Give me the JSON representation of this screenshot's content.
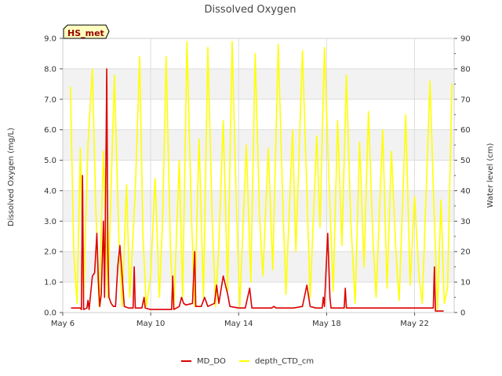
{
  "chart_data": {
    "type": "line",
    "title": "Dissolved Oxygen",
    "site_label": "HS_met",
    "xlabel": "",
    "ylabel_left": "Dissolved Oxygen (mg/L)",
    "ylabel_right": "Water level (cm)",
    "x_range_days": [
      6,
      23.8
    ],
    "ylim_left": [
      0,
      9
    ],
    "ylim_right": [
      0,
      90
    ],
    "yticks_left": [
      "0.0",
      "1.0",
      "2.0",
      "3.0",
      "4.0",
      "5.0",
      "6.0",
      "7.0",
      "8.0",
      "9.0"
    ],
    "yticks_right": [
      "0",
      "10",
      "20",
      "30",
      "40",
      "50",
      "60",
      "70",
      "80",
      "90"
    ],
    "x_ticks": [
      {
        "day": 6,
        "label": "May 6"
      },
      {
        "day": 10,
        "label": "May 10"
      },
      {
        "day": 14,
        "label": "May 14"
      },
      {
        "day": 18,
        "label": "May 18"
      },
      {
        "day": 22,
        "label": "May 22"
      }
    ],
    "grid": true,
    "legend_position": "bottom-center",
    "series": [
      {
        "name": "MD_DO",
        "axis": "left",
        "color": "#dd0000",
        "points": [
          [
            6.4,
            0.15
          ],
          [
            6.7,
            0.15
          ],
          [
            6.8,
            0.15
          ],
          [
            6.85,
            0.1
          ],
          [
            6.9,
            4.5
          ],
          [
            6.95,
            0.1
          ],
          [
            7.1,
            0.15
          ],
          [
            7.15,
            0.4
          ],
          [
            7.2,
            0.1
          ],
          [
            7.35,
            1.2
          ],
          [
            7.45,
            1.3
          ],
          [
            7.55,
            2.6
          ],
          [
            7.62,
            1.0
          ],
          [
            7.68,
            0.2
          ],
          [
            7.75,
            0.6
          ],
          [
            7.85,
            3.0
          ],
          [
            7.9,
            0.5
          ],
          [
            7.95,
            4.0
          ],
          [
            8.0,
            8.0
          ],
          [
            8.05,
            2.0
          ],
          [
            8.1,
            0.5
          ],
          [
            8.2,
            0.3
          ],
          [
            8.3,
            0.2
          ],
          [
            8.4,
            0.2
          ],
          [
            8.5,
            1.5
          ],
          [
            8.6,
            2.2
          ],
          [
            8.7,
            1.2
          ],
          [
            8.8,
            0.2
          ],
          [
            9.0,
            0.15
          ],
          [
            9.2,
            0.15
          ],
          [
            9.25,
            1.5
          ],
          [
            9.3,
            0.15
          ],
          [
            9.6,
            0.15
          ],
          [
            9.7,
            0.5
          ],
          [
            9.75,
            0.15
          ],
          [
            10.0,
            0.1
          ],
          [
            10.5,
            0.1
          ],
          [
            10.95,
            0.1
          ],
          [
            11.0,
            1.2
          ],
          [
            11.05,
            0.1
          ],
          [
            11.3,
            0.2
          ],
          [
            11.4,
            0.5
          ],
          [
            11.5,
            0.3
          ],
          [
            11.6,
            0.25
          ],
          [
            11.9,
            0.3
          ],
          [
            12.0,
            2.0
          ],
          [
            12.05,
            0.2
          ],
          [
            12.3,
            0.2
          ],
          [
            12.45,
            0.5
          ],
          [
            12.6,
            0.2
          ],
          [
            12.9,
            0.3
          ],
          [
            13.0,
            0.9
          ],
          [
            13.1,
            0.3
          ],
          [
            13.3,
            1.2
          ],
          [
            13.4,
            0.9
          ],
          [
            13.5,
            0.6
          ],
          [
            13.6,
            0.2
          ],
          [
            14.0,
            0.15
          ],
          [
            14.3,
            0.15
          ],
          [
            14.5,
            0.8
          ],
          [
            14.6,
            0.15
          ],
          [
            15.0,
            0.15
          ],
          [
            15.5,
            0.15
          ],
          [
            15.6,
            0.2
          ],
          [
            15.7,
            0.15
          ],
          [
            16.0,
            0.15
          ],
          [
            16.5,
            0.15
          ],
          [
            16.9,
            0.2
          ],
          [
            17.1,
            0.9
          ],
          [
            17.25,
            0.2
          ],
          [
            17.5,
            0.15
          ],
          [
            17.8,
            0.15
          ],
          [
            17.85,
            0.5
          ],
          [
            17.9,
            0.2
          ],
          [
            18.05,
            2.6
          ],
          [
            18.15,
            0.5
          ],
          [
            18.2,
            0.15
          ],
          [
            18.5,
            0.15
          ],
          [
            18.8,
            0.15
          ],
          [
            18.85,
            0.8
          ],
          [
            18.9,
            0.15
          ],
          [
            19.5,
            0.15
          ],
          [
            20.0,
            0.15
          ],
          [
            20.5,
            0.15
          ],
          [
            21.0,
            0.15
          ],
          [
            21.5,
            0.15
          ],
          [
            22.0,
            0.15
          ],
          [
            22.5,
            0.15
          ],
          [
            22.85,
            0.15
          ],
          [
            22.9,
            1.5
          ],
          [
            22.95,
            0.05
          ],
          [
            23.3,
            0.05
          ]
        ]
      },
      {
        "name": "depth_CTD_cm",
        "axis": "right",
        "color": "#ffff00",
        "points": [
          [
            6.35,
            74
          ],
          [
            6.5,
            20
          ],
          [
            6.65,
            3
          ],
          [
            6.8,
            54
          ],
          [
            6.95,
            5
          ],
          [
            7.15,
            55
          ],
          [
            7.35,
            80
          ],
          [
            7.5,
            35
          ],
          [
            7.65,
            2
          ],
          [
            7.85,
            53
          ],
          [
            8.05,
            5
          ],
          [
            8.35,
            78
          ],
          [
            8.55,
            25
          ],
          [
            8.7,
            2
          ],
          [
            8.9,
            42
          ],
          [
            9.05,
            5
          ],
          [
            9.3,
            40
          ],
          [
            9.5,
            84
          ],
          [
            9.65,
            25
          ],
          [
            9.8,
            2
          ],
          [
            10.0,
            12
          ],
          [
            10.2,
            44
          ],
          [
            10.4,
            5
          ],
          [
            10.55,
            33
          ],
          [
            10.7,
            84
          ],
          [
            10.9,
            20
          ],
          [
            11.05,
            1
          ],
          [
            11.3,
            50
          ],
          [
            11.45,
            5
          ],
          [
            11.65,
            89
          ],
          [
            11.85,
            32
          ],
          [
            12.0,
            2
          ],
          [
            12.2,
            57
          ],
          [
            12.4,
            5
          ],
          [
            12.6,
            87
          ],
          [
            12.8,
            30
          ],
          [
            12.95,
            2
          ],
          [
            13.1,
            22
          ],
          [
            13.3,
            63
          ],
          [
            13.5,
            7
          ],
          [
            13.7,
            89
          ],
          [
            13.9,
            34
          ],
          [
            14.05,
            2
          ],
          [
            14.35,
            55
          ],
          [
            14.55,
            10
          ],
          [
            14.75,
            85
          ],
          [
            14.95,
            32
          ],
          [
            15.1,
            12
          ],
          [
            15.35,
            54
          ],
          [
            15.55,
            14
          ],
          [
            15.8,
            88
          ],
          [
            16.0,
            38
          ],
          [
            16.15,
            6
          ],
          [
            16.45,
            60
          ],
          [
            16.6,
            20
          ],
          [
            16.9,
            86
          ],
          [
            17.1,
            40
          ],
          [
            17.25,
            5
          ],
          [
            17.55,
            58
          ],
          [
            17.7,
            28
          ],
          [
            17.9,
            87
          ],
          [
            18.1,
            45
          ],
          [
            18.3,
            7
          ],
          [
            18.5,
            63
          ],
          [
            18.7,
            22
          ],
          [
            18.9,
            78
          ],
          [
            19.1,
            30
          ],
          [
            19.3,
            3
          ],
          [
            19.5,
            56
          ],
          [
            19.7,
            15
          ],
          [
            19.9,
            66
          ],
          [
            20.1,
            25
          ],
          [
            20.25,
            5
          ],
          [
            20.55,
            60
          ],
          [
            20.75,
            8
          ],
          [
            20.95,
            53
          ],
          [
            21.15,
            20
          ],
          [
            21.3,
            4
          ],
          [
            21.6,
            65
          ],
          [
            21.8,
            9
          ],
          [
            22.0,
            38
          ],
          [
            22.2,
            12
          ],
          [
            22.35,
            3
          ],
          [
            22.7,
            76
          ],
          [
            22.9,
            30
          ],
          [
            23.05,
            1
          ],
          [
            23.2,
            37
          ],
          [
            23.35,
            3
          ],
          [
            23.5,
            8
          ],
          [
            23.7,
            75
          ]
        ]
      }
    ]
  }
}
